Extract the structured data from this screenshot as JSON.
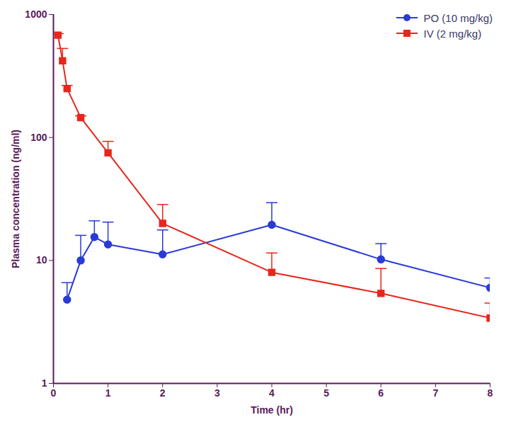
{
  "chart_data": {
    "type": "line",
    "x_label": "Time (hr)",
    "y_label": "Plasma concentration (ng/ml)",
    "log": "y",
    "legend": "top-right",
    "grid": false,
    "xlim": [
      0,
      8
    ],
    "xticks": [
      0,
      1,
      2,
      3,
      4,
      5,
      6,
      7,
      8
    ],
    "ylim": [
      1,
      1000
    ],
    "yticks": [
      1,
      10,
      100,
      1000
    ],
    "series": [
      {
        "name": "PO (10 mg/kg)",
        "color": "#2a3ad6",
        "marker": "circle",
        "x": [
          0.25,
          0.5,
          0.75,
          1,
          2,
          4,
          6,
          8
        ],
        "values": [
          4.8,
          10,
          15.5,
          13.5,
          11.2,
          19.5,
          10.2,
          6
        ],
        "errors": [
          1.8,
          6,
          5.5,
          7,
          6.5,
          10,
          3.5,
          1.2
        ]
      },
      {
        "name": "IV (2 mg/kg)",
        "color": "#e8261b",
        "marker": "square",
        "x": [
          0.083,
          0.167,
          0.25,
          0.5,
          1,
          2,
          4,
          6,
          8
        ],
        "values": [
          680,
          420,
          250,
          145,
          75,
          20,
          8,
          5.4,
          3.4
        ],
        "errors": [
          20,
          110,
          15,
          5,
          18,
          8.5,
          3.5,
          3.2,
          1.1
        ]
      }
    ]
  }
}
